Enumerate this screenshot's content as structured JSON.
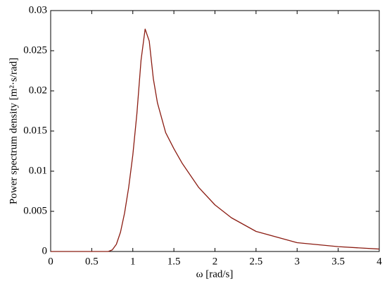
{
  "chart_data": {
    "type": "line",
    "x_label": "ω [rad/s]",
    "y_label": "Power spectrum density [m²·s/rad]",
    "x": [
      0,
      0.5,
      0.6,
      0.7,
      0.75,
      0.8,
      0.85,
      0.9,
      0.95,
      1.0,
      1.05,
      1.1,
      1.15,
      1.2,
      1.25,
      1.3,
      1.4,
      1.5,
      1.6,
      1.8,
      2.0,
      2.2,
      2.5,
      3.0,
      3.5,
      4.0
    ],
    "series": [
      {
        "color": "#8b1c12",
        "values": [
          0,
          0,
          0,
          0,
          0.0002,
          0.0009,
          0.0024,
          0.0048,
          0.008,
          0.012,
          0.0172,
          0.0238,
          0.0277,
          0.0262,
          0.0215,
          0.0185,
          0.0148,
          0.0128,
          0.011,
          0.008,
          0.0058,
          0.0042,
          0.0025,
          0.0011,
          0.0006,
          0.0003
        ]
      }
    ],
    "xlim": [
      0,
      4
    ],
    "xticks": [
      0,
      0.5,
      1,
      1.5,
      2,
      2.5,
      3,
      3.5,
      4
    ],
    "ylim": [
      0,
      0.03
    ],
    "yticks": [
      0,
      0.005,
      0.01,
      0.015,
      0.02,
      0.025,
      0.03
    ]
  }
}
